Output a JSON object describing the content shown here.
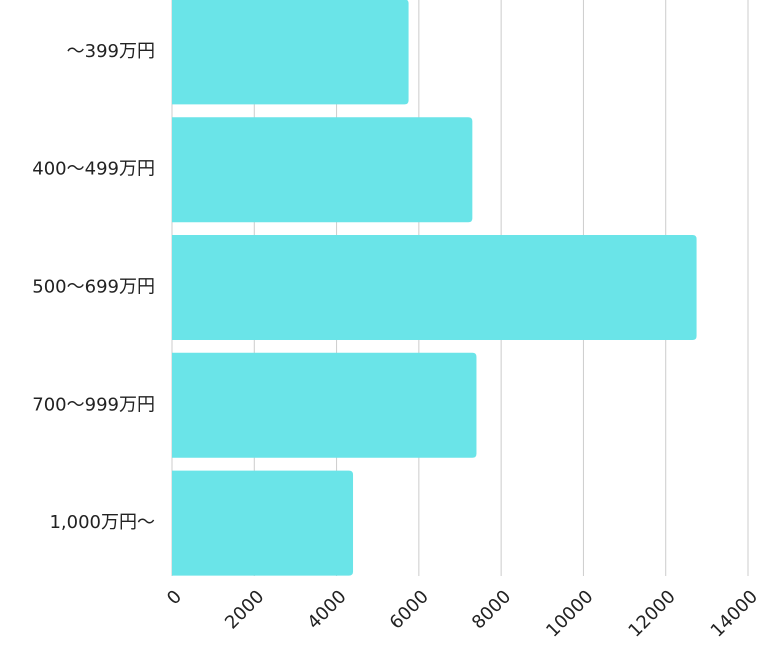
{
  "chart_data": {
    "type": "bar",
    "orientation": "horizontal",
    "categories": [
      "〜399万円",
      "400〜499万円",
      "500〜699万円",
      "700〜999万円",
      "1,000万円〜"
    ],
    "values": [
      5750,
      7300,
      12750,
      7400,
      4400
    ],
    "color": "#6ae4e8",
    "xlim": [
      0,
      14000
    ],
    "xticks": [
      0,
      2000,
      4000,
      6000,
      8000,
      10000,
      12000,
      14000
    ],
    "grid": true
  }
}
